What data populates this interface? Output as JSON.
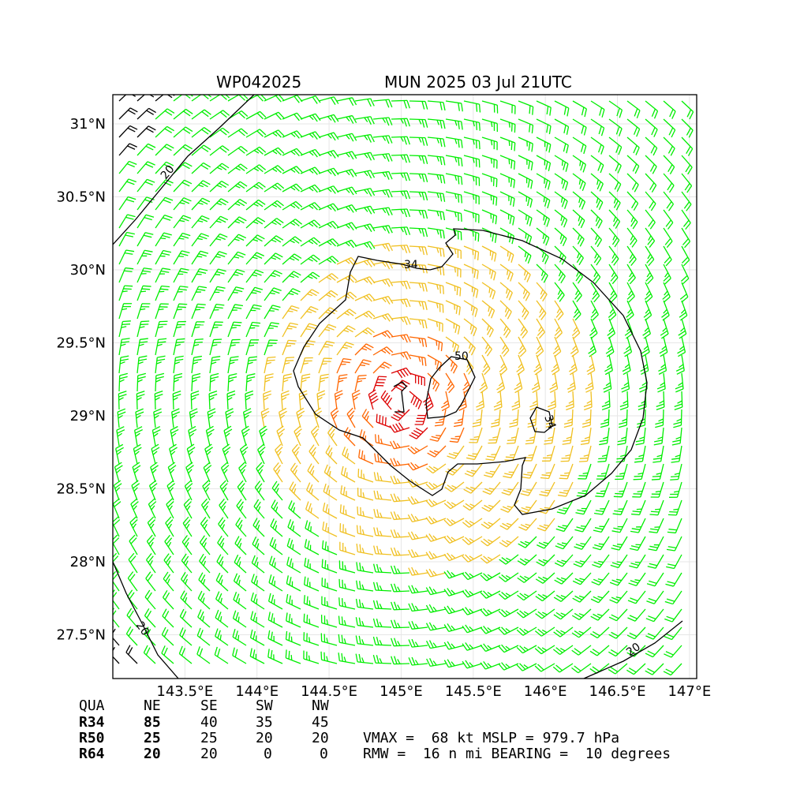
{
  "title_left": "WP042025",
  "title_right": "MUN 2025 03 Jul 21UTC",
  "chart_data": {
    "type": "wind barb map",
    "xlim": [
      143.0,
      147.05
    ],
    "ylim": [
      27.2,
      31.2
    ],
    "x_ticks": [
      143.5,
      144.0,
      144.5,
      145.0,
      145.5,
      146.0,
      146.5,
      147.0
    ],
    "x_tick_labels": [
      "143.5°E",
      "144°E",
      "144.5°E",
      "145°E",
      "145.5°E",
      "146°E",
      "146.5°E",
      "147°E"
    ],
    "y_ticks": [
      27.5,
      28.0,
      28.5,
      29.0,
      29.5,
      30.0,
      30.5,
      31.0
    ],
    "y_tick_labels": [
      "27.5°N",
      "28°N",
      "28.5°N",
      "29°N",
      "29.5°N",
      "30°N",
      "30.5°N",
      "31°N"
    ],
    "grid": true,
    "storm_center": [
      145.0,
      29.1
    ],
    "contours": [
      {
        "level": 20,
        "label": "20"
      },
      {
        "level": 34,
        "label": "34"
      },
      {
        "level": 50,
        "label": "50"
      }
    ],
    "barb_colors": {
      "below_34": "#000000",
      "34_to_50": "#00ee00",
      "50_to_64": "#f0c020",
      "64_plus": "#ff6600",
      "max": "#dd0000"
    }
  },
  "table": {
    "header": [
      "QUA",
      "NE",
      "SE",
      "SW",
      "NW"
    ],
    "rows": [
      {
        "label": "R34",
        "values": [
          "85",
          "40",
          "35",
          "45"
        ]
      },
      {
        "label": "R50",
        "values": [
          "25",
          "25",
          "20",
          "20"
        ]
      },
      {
        "label": "R64",
        "values": [
          "20",
          "20",
          "0",
          "0"
        ]
      }
    ]
  },
  "info": {
    "line1": "VMAX =  68 kt MSLP = 979.7 hPa",
    "line2": "RMW =  16 n mi BEARING =  10 degrees"
  }
}
